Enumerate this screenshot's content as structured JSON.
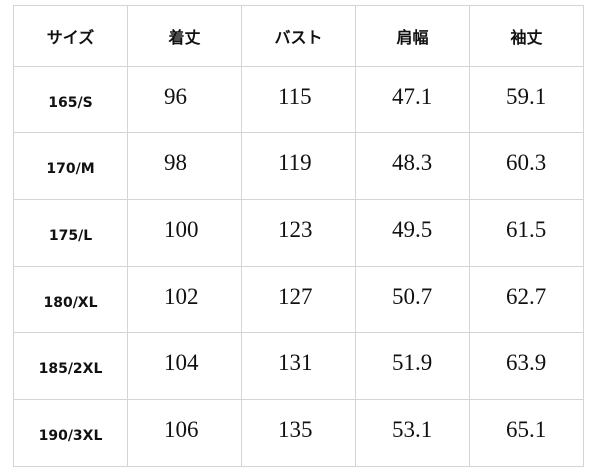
{
  "table": {
    "headers": [
      "サイズ",
      "着丈",
      "バスト",
      "肩幅",
      "袖丈"
    ],
    "rows": [
      [
        "165/S",
        "96",
        "115",
        "47.1",
        "59.1"
      ],
      [
        "170/M",
        "98",
        "119",
        "48.3",
        "60.3"
      ],
      [
        "175/L",
        "100",
        "123",
        "49.5",
        "61.5"
      ],
      [
        "180/XL",
        "102",
        "127",
        "50.7",
        "62.7"
      ],
      [
        "185/2XL",
        "104",
        "131",
        "51.9",
        "63.9"
      ],
      [
        "190/3XL",
        "106",
        "135",
        "53.1",
        "65.1"
      ]
    ]
  }
}
